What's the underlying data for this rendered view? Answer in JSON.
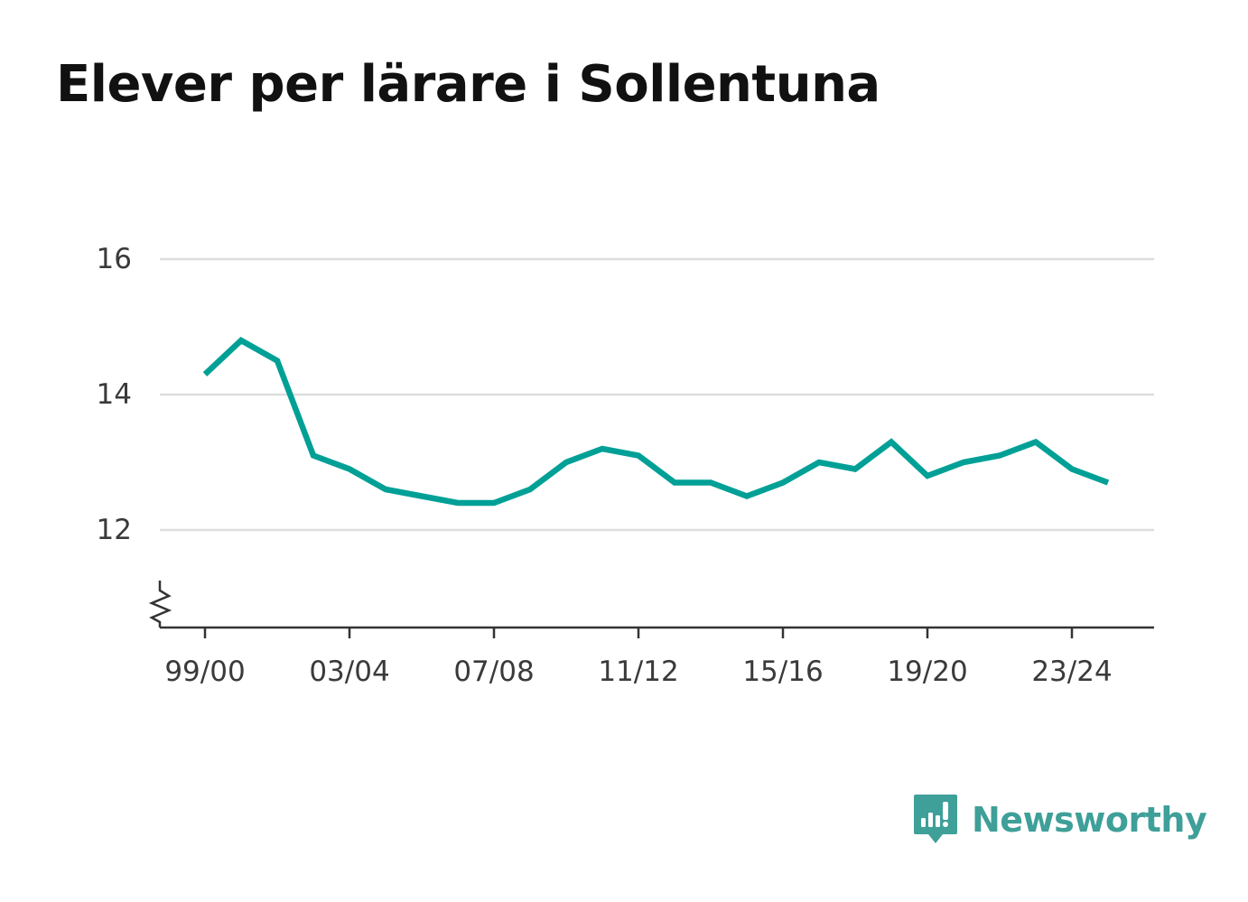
{
  "title": "Elever per lärare i Sollentuna",
  "brand": {
    "name": "Newsworthy",
    "icon": "newsworthy-logo-icon",
    "color": "#3f9f99"
  },
  "colors": {
    "line": "#00a096",
    "grid": "#dddddd",
    "axis": "#333333"
  },
  "chart_data": {
    "type": "line",
    "title": "Elever per lärare i Sollentuna",
    "xlabel": "",
    "ylabel": "",
    "x": [
      "99/00",
      "00/01",
      "01/02",
      "02/03",
      "03/04",
      "04/05",
      "05/06",
      "06/07",
      "07/08",
      "08/09",
      "09/10",
      "10/11",
      "11/12",
      "12/13",
      "13/14",
      "14/15",
      "15/16",
      "16/17",
      "17/18",
      "18/19",
      "19/20",
      "20/21",
      "21/22",
      "22/23",
      "23/24",
      "24/25"
    ],
    "x_tick_labels": [
      "99/00",
      "03/04",
      "07/08",
      "11/12",
      "15/16",
      "19/20",
      "23/24"
    ],
    "series": [
      {
        "values": [
          14.3,
          14.8,
          14.5,
          13.1,
          12.9,
          12.6,
          12.5,
          12.4,
          12.4,
          12.6,
          13.0,
          13.2,
          13.1,
          12.7,
          12.7,
          12.5,
          12.7,
          13.0,
          12.9,
          13.3,
          12.8,
          13.0,
          13.1,
          13.3,
          12.9,
          12.7
        ]
      }
    ],
    "y_ticks": [
      12,
      14,
      16
    ],
    "ylim": [
      10.6,
      16
    ],
    "y_axis_break": true,
    "grid": true,
    "legend": "none"
  }
}
